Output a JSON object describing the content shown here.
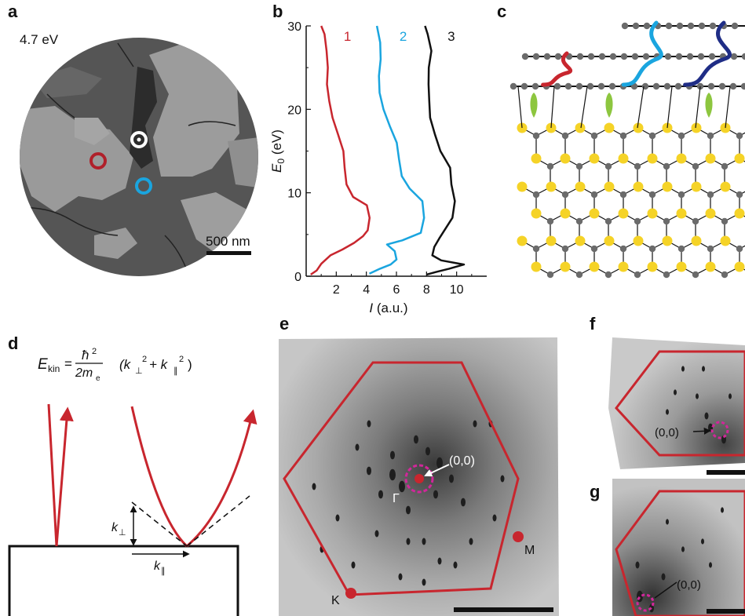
{
  "panels": {
    "a": {
      "label": "a",
      "energy": "4.7 eV",
      "scalebar": "500 nm",
      "markers": [
        {
          "name": "white-marker",
          "color": "#ffffff"
        },
        {
          "name": "red-marker",
          "color": "#b0202a"
        },
        {
          "name": "blue-marker",
          "color": "#1aa5df"
        }
      ]
    },
    "b": {
      "label": "b"
    },
    "c": {
      "label": "c"
    },
    "d": {
      "label": "d",
      "eq": {
        "E": "E",
        "kin": "kin",
        "num": "ħ",
        "exp": "2",
        "den": "2m",
        "den_sub": "e",
        "paren_open": "(k",
        "perp": "⊥",
        "sq1": "2",
        "plus": " + k",
        "par": "∥",
        "sq2": "2",
        "paren_close": ")"
      },
      "k_perp": {
        "k": "k",
        "sub": "⊥"
      },
      "k_par": {
        "k": "k",
        "sub": "∥"
      }
    },
    "e": {
      "label": "e",
      "origin": "(0,0)",
      "gamma": "Γ",
      "M": "M",
      "K": "K"
    },
    "f": {
      "label": "f",
      "origin": "(0,0)"
    },
    "g": {
      "label": "g",
      "origin": "(0,0)"
    }
  },
  "colors": {
    "hexagon": "#c8262e",
    "magenta": "#d1279a",
    "red": "#c8262e",
    "blue": "#1aa5df",
    "black": "#111111",
    "navy": "#1f2d86",
    "sulfur": "#f5d327",
    "carbon": "#6b6b6b",
    "pz": "#8dc63f"
  },
  "chart_data": {
    "type": "line",
    "xlabel": "I (a.u.)",
    "ylabel": "E0 (eV)",
    "xlim": [
      0,
      12
    ],
    "ylim": [
      0,
      30
    ],
    "xticks": [
      2,
      4,
      6,
      8,
      10
    ],
    "yticks": [
      0,
      10,
      20,
      30
    ],
    "series": [
      {
        "name": "1",
        "color": "#c8262e",
        "points": [
          [
            0.3,
            0.2
          ],
          [
            0.6,
            0.7
          ],
          [
            0.9,
            1.5
          ],
          [
            1.6,
            2.5
          ],
          [
            2.5,
            3.2
          ],
          [
            3.3,
            4.0
          ],
          [
            3.8,
            4.8
          ],
          [
            4.0,
            5.5
          ],
          [
            4.1,
            7
          ],
          [
            4.0,
            8.5
          ],
          [
            3.2,
            9.5
          ],
          [
            2.8,
            11
          ],
          [
            2.6,
            13
          ],
          [
            2.4,
            15
          ],
          [
            2.0,
            17
          ],
          [
            1.7,
            19
          ],
          [
            1.6,
            21
          ],
          [
            1.5,
            23
          ],
          [
            1.5,
            25
          ],
          [
            1.3,
            27
          ],
          [
            1.1,
            29
          ],
          [
            1.0,
            30
          ]
        ]
      },
      {
        "name": "2",
        "color": "#1aa5df",
        "points": [
          [
            4.2,
            0.3
          ],
          [
            4.8,
            0.9
          ],
          [
            5.6,
            1.4
          ],
          [
            6.1,
            2.0
          ],
          [
            6.0,
            3.0
          ],
          [
            5.4,
            3.8
          ],
          [
            6.3,
            4.3
          ],
          [
            7.5,
            5.2
          ],
          [
            7.8,
            7
          ],
          [
            7.8,
            9
          ],
          [
            7.0,
            10.5
          ],
          [
            6.4,
            12
          ],
          [
            6.1,
            14
          ],
          [
            5.9,
            16
          ],
          [
            5.5,
            18
          ],
          [
            5.2,
            20
          ],
          [
            5.0,
            22
          ],
          [
            4.9,
            24
          ],
          [
            4.9,
            26
          ],
          [
            4.8,
            28
          ],
          [
            4.7,
            30
          ]
        ]
      },
      {
        "name": "3",
        "color": "#111111",
        "points": [
          [
            8.0,
            0.2
          ],
          [
            8.6,
            0.5
          ],
          [
            9.6,
            0.9
          ],
          [
            10.6,
            1.4
          ],
          [
            9.0,
            1.9
          ],
          [
            8.3,
            2.5
          ],
          [
            8.4,
            3.5
          ],
          [
            8.8,
            4.5
          ],
          [
            9.8,
            7
          ],
          [
            10.0,
            9
          ],
          [
            9.7,
            11
          ],
          [
            9.5,
            13
          ],
          [
            8.8,
            15
          ],
          [
            8.5,
            17
          ],
          [
            8.3,
            19
          ],
          [
            8.3,
            21
          ],
          [
            8.2,
            23
          ],
          [
            8.1,
            25
          ],
          [
            8.2,
            27
          ],
          [
            8.0,
            29
          ],
          [
            7.9,
            30
          ]
        ]
      }
    ]
  }
}
